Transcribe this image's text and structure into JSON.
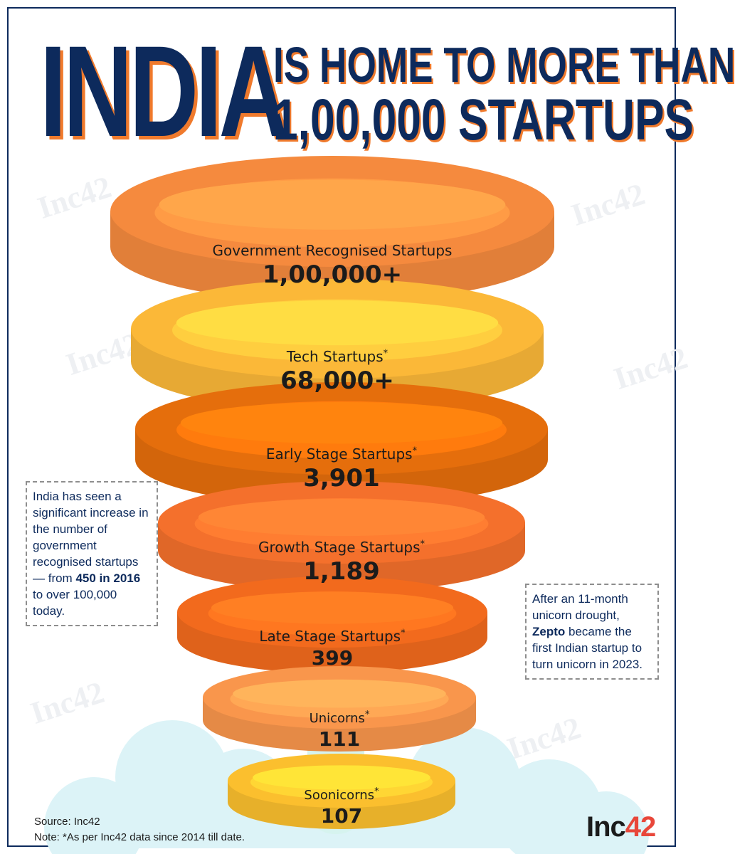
{
  "title": {
    "big": "INDIA",
    "line1": "IS HOME TO MORE THAN",
    "line2": "1,00,000 STARTUPS"
  },
  "tiers": [
    {
      "label": "Government Recognised Startups",
      "sup": "",
      "value": "1,00,000+"
    },
    {
      "label": "Tech Startups",
      "sup": "*",
      "value": "68,000+"
    },
    {
      "label": "Early Stage Startups",
      "sup": "*",
      "value": "3,901"
    },
    {
      "label": "Growth Stage Startups",
      "sup": "*",
      "value": "1,189"
    },
    {
      "label": "Late Stage Startups",
      "sup": "*",
      "value": "399"
    },
    {
      "label": "Unicorns",
      "sup": "*",
      "value": "111"
    },
    {
      "label": "Soonicorns",
      "sup": "*",
      "value": "107"
    }
  ],
  "left_note": {
    "text_a": "India has seen a significant increase in the number of government recognised startups — from ",
    "bold": "450 in 2016",
    "text_b": " to over 100,000 today."
  },
  "right_note": {
    "text_a": "After an 11-month unicorn drought, ",
    "bold": "Zepto",
    "text_b": " became the first Indian startup to turn unicorn in 2023."
  },
  "footer": {
    "source": "Source: Inc42",
    "note": "Note: *As per Inc42 data since 2014 till date."
  },
  "logo": {
    "word": "Inc",
    "num": "42"
  },
  "watermark": "Inc42",
  "colors": {
    "navy": "#0d2a5c",
    "accent": "#f07a2c",
    "ring1": "#f58a3e",
    "ring2": "#fbb838",
    "ring3": "#e56e0c",
    "ring4": "#f4702c",
    "ring5": "#f26a1d",
    "ring6": "#f9964c",
    "ring7": "#fbbf2e"
  }
}
